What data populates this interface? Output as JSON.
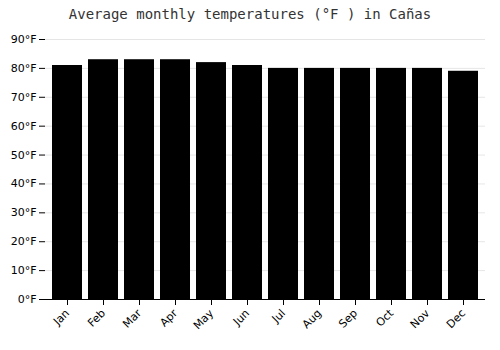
{
  "chart_data": {
    "type": "bar",
    "title": "Average monthly temperatures (°F ) in Cañas",
    "categories": [
      "Jan",
      "Feb",
      "Mar",
      "Apr",
      "May",
      "Jun",
      "Jul",
      "Aug",
      "Sep",
      "Oct",
      "Nov",
      "Dec"
    ],
    "values": [
      81,
      83,
      83,
      83,
      82,
      81,
      80,
      80,
      80,
      80,
      80,
      79
    ],
    "ylim": [
      0,
      90
    ],
    "yticks": [
      {
        "value": 0,
        "label": "0°F"
      },
      {
        "value": 10,
        "label": "10°F"
      },
      {
        "value": 20,
        "label": "20°F"
      },
      {
        "value": 30,
        "label": "30°F"
      },
      {
        "value": 40,
        "label": "40°F"
      },
      {
        "value": 50,
        "label": "50°F"
      },
      {
        "value": 60,
        "label": "60°F"
      },
      {
        "value": 70,
        "label": "70°F"
      },
      {
        "value": 80,
        "label": "80°F"
      },
      {
        "value": 90,
        "label": "90°F"
      }
    ],
    "grid": true
  }
}
